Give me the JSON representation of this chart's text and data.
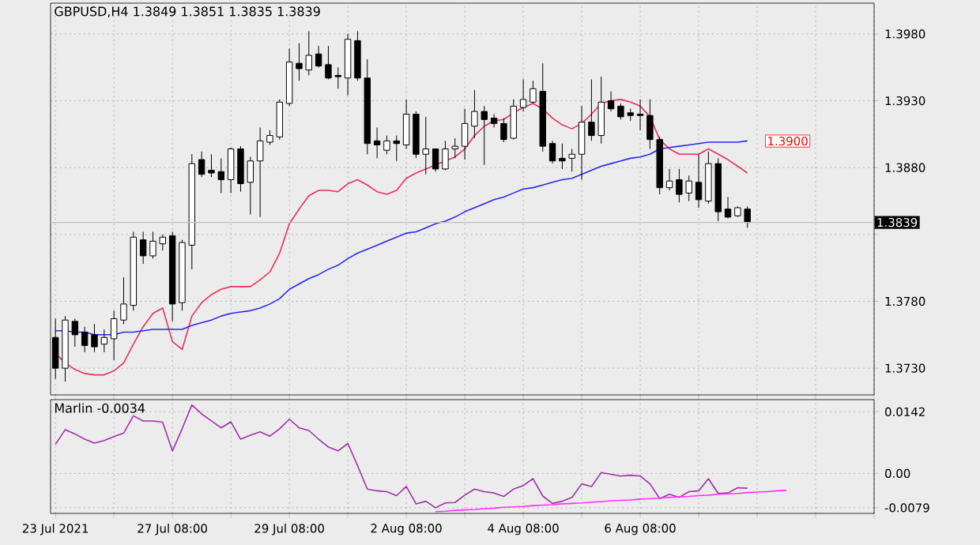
{
  "chart_data": [
    {
      "type": "candlestick",
      "title": "GBPUSD,H4  1.3849 1.3851 1.3835 1.3839",
      "categories": [
        null,
        null,
        null,
        null,
        null,
        null,
        null,
        null,
        null,
        null,
        null,
        null,
        null,
        null,
        null,
        null,
        null,
        null,
        null,
        null,
        null,
        null,
        null,
        null,
        null,
        null,
        null,
        null,
        null,
        null,
        null,
        null,
        null,
        null,
        null,
        null,
        null,
        null,
        null,
        null,
        null,
        null,
        null,
        null,
        null,
        null,
        null,
        null,
        null,
        null,
        null,
        null,
        null,
        null,
        null,
        null,
        null,
        null,
        null,
        null,
        null,
        null,
        null,
        null,
        null,
        null,
        null,
        null,
        null,
        null,
        null,
        null
      ],
      "ohlc": [
        [
          1.3753,
          1.3767,
          1.3722,
          1.373
        ],
        [
          1.373,
          1.3769,
          1.372,
          1.3766
        ],
        [
          1.3765,
          1.3767,
          1.3746,
          1.3755
        ],
        [
          1.3757,
          1.3761,
          1.3742,
          1.3747
        ],
        [
          1.3755,
          1.3763,
          1.3742,
          1.3746
        ],
        [
          1.3748,
          1.3759,
          1.3742,
          1.3753
        ],
        [
          1.3752,
          1.3773,
          1.3736,
          1.3767
        ],
        [
          1.3766,
          1.3798,
          1.3763,
          1.3778
        ],
        [
          1.3777,
          1.3832,
          1.3773,
          1.3828
        ],
        [
          1.3826,
          1.3832,
          1.3808,
          1.3814
        ],
        [
          1.3814,
          1.3832,
          1.3812,
          1.3825
        ],
        [
          1.3823,
          1.383,
          1.3818,
          1.3828
        ],
        [
          1.3829,
          1.3832,
          1.3765,
          1.3778
        ],
        [
          1.3779,
          1.3826,
          1.3773,
          1.3824
        ],
        [
          1.3822,
          1.389,
          1.3804,
          1.3883
        ],
        [
          1.3886,
          1.3892,
          1.3873,
          1.3875
        ],
        [
          1.3878,
          1.389,
          1.3873,
          1.3876
        ],
        [
          1.3877,
          1.3887,
          1.3861,
          1.3871
        ],
        [
          1.3871,
          1.3895,
          1.3861,
          1.3894
        ],
        [
          1.3894,
          1.3896,
          1.3862,
          1.3868
        ],
        [
          1.3869,
          1.3888,
          1.3845,
          1.3885
        ],
        [
          1.3885,
          1.391,
          1.3843,
          1.39
        ],
        [
          1.3899,
          1.3908,
          1.3897,
          1.3904
        ],
        [
          1.3903,
          1.3931,
          1.3901,
          1.3929
        ],
        [
          1.3928,
          1.3969,
          1.3926,
          1.3959
        ],
        [
          1.3958,
          1.3973,
          1.3945,
          1.3954
        ],
        [
          1.3953,
          1.3982,
          1.3949,
          1.3964
        ],
        [
          1.3965,
          1.3971,
          1.3955,
          1.3956
        ],
        [
          1.3957,
          1.3971,
          1.3946,
          1.3947
        ],
        [
          1.3949,
          1.3955,
          1.3939,
          1.3948
        ],
        [
          1.3947,
          1.398,
          1.3934,
          1.3976
        ],
        [
          1.3975,
          1.3982,
          1.3945,
          1.3947
        ],
        [
          1.3947,
          1.3961,
          1.389,
          1.3898
        ],
        [
          1.39,
          1.391,
          1.3887,
          1.3897
        ],
        [
          1.3893,
          1.3904,
          1.389,
          1.39
        ],
        [
          1.39,
          1.3904,
          1.3885,
          1.3898
        ],
        [
          1.3897,
          1.3931,
          1.3894,
          1.392
        ],
        [
          1.392,
          1.3922,
          1.3887,
          1.389
        ],
        [
          1.389,
          1.3918,
          1.3875,
          1.3894
        ],
        [
          1.3894,
          1.3894,
          1.3877,
          1.3879
        ],
        [
          1.3879,
          1.39,
          1.3878,
          1.3894
        ],
        [
          1.3894,
          1.3902,
          1.3887,
          1.3896
        ],
        [
          1.3896,
          1.3924,
          1.3886,
          1.3913
        ],
        [
          1.3911,
          1.3938,
          1.3902,
          1.3922
        ],
        [
          1.3922,
          1.3926,
          1.3882,
          1.3916
        ],
        [
          1.3917,
          1.392,
          1.391,
          1.3913
        ],
        [
          1.3913,
          1.3917,
          1.3899,
          1.3901
        ],
        [
          1.3902,
          1.3931,
          1.3901,
          1.3926
        ],
        [
          1.3925,
          1.3946,
          1.3922,
          1.3931
        ],
        [
          1.3929,
          1.3945,
          1.3928,
          1.3939
        ],
        [
          1.3937,
          1.3958,
          1.3892,
          1.3896
        ],
        [
          1.3898,
          1.39,
          1.3883,
          1.3885
        ],
        [
          1.3887,
          1.3898,
          1.3879,
          1.3885
        ],
        [
          1.3887,
          1.3894,
          1.3877,
          1.389
        ],
        [
          1.389,
          1.3926,
          1.3871,
          1.3914
        ],
        [
          1.3914,
          1.3946,
          1.39,
          1.3904
        ],
        [
          1.3904,
          1.3948,
          1.3898,
          1.3929
        ],
        [
          1.393,
          1.3937,
          1.3922,
          1.3924
        ],
        [
          1.3926,
          1.3928,
          1.3916,
          1.3918
        ],
        [
          1.3921,
          1.3924,
          1.3915,
          1.3919
        ],
        [
          1.392,
          1.3931,
          1.3908,
          1.3919
        ],
        [
          1.3919,
          1.3931,
          1.3894,
          1.3901
        ],
        [
          1.3901,
          1.3903,
          1.386,
          1.3865
        ],
        [
          1.3865,
          1.3879,
          1.3863,
          1.387
        ],
        [
          1.3871,
          1.3879,
          1.3854,
          1.386
        ],
        [
          1.3861,
          1.3874,
          1.3855,
          1.387
        ],
        [
          1.3869,
          1.389,
          1.385,
          1.3856
        ],
        [
          1.3855,
          1.3892,
          1.3853,
          1.3883
        ],
        [
          1.3883,
          1.3887,
          1.384,
          1.3847
        ],
        [
          1.3849,
          1.3858,
          1.3842,
          1.3843
        ],
        [
          1.3844,
          1.3851,
          1.3843,
          1.385
        ],
        [
          1.3849,
          1.3851,
          1.3835,
          1.3839
        ]
      ],
      "series": [
        {
          "type": "line",
          "color": "#e8305a",
          "values": [
            1.3741,
            1.3734,
            1.3729,
            1.3726,
            1.3725,
            1.3725,
            1.3728,
            1.3734,
            1.3748,
            1.3761,
            1.3771,
            1.3775,
            1.375,
            1.3744,
            1.3769,
            1.3779,
            1.3785,
            1.3789,
            1.3791,
            1.3791,
            1.3791,
            1.3796,
            1.3802,
            1.3816,
            1.3838,
            1.3849,
            1.3859,
            1.3863,
            1.3863,
            1.3862,
            1.3868,
            1.3871,
            1.3867,
            1.3862,
            1.386,
            1.3863,
            1.3872,
            1.3876,
            1.3879,
            1.3882,
            1.3885,
            1.3888,
            1.3894,
            1.3904,
            1.3911,
            1.3915,
            1.3916,
            1.3921,
            1.3925,
            1.3928,
            1.3924,
            1.3917,
            1.3912,
            1.3909,
            1.3913,
            1.392,
            1.3928,
            1.393,
            1.3931,
            1.3929,
            1.3926,
            1.3918,
            1.3901,
            1.3894,
            1.389,
            1.389,
            1.389,
            1.3894,
            1.389,
            1.3886,
            1.3881,
            1.3876
          ]
        },
        {
          "type": "line",
          "color": "#2828f0",
          "values": [
            1.3758,
            1.3758,
            1.3757,
            1.3757,
            1.3755,
            1.3755,
            1.3755,
            1.3757,
            1.3757,
            1.3758,
            1.3759,
            1.3759,
            1.3759,
            1.3759,
            1.3762,
            1.3764,
            1.3766,
            1.3769,
            1.3771,
            1.3772,
            1.3773,
            1.3775,
            1.3778,
            1.3782,
            1.3789,
            1.3793,
            1.3797,
            1.38,
            1.3804,
            1.3807,
            1.3812,
            1.3816,
            1.3819,
            1.3822,
            1.3825,
            1.3828,
            1.3831,
            1.3832,
            1.3835,
            1.3838,
            1.384,
            1.3843,
            1.3847,
            1.385,
            1.3853,
            1.3856,
            1.3858,
            1.3861,
            1.3864,
            1.3865,
            1.3867,
            1.3869,
            1.3871,
            1.3872,
            1.3875,
            1.3878,
            1.3881,
            1.3883,
            1.3885,
            1.3887,
            1.3888,
            1.389,
            1.3894,
            1.3895,
            1.3896,
            1.3897,
            1.3898,
            1.3899,
            1.3899,
            1.3899,
            1.3899,
            1.39
          ]
        }
      ],
      "ylim": [
        1.371,
        1.4003
      ],
      "yticks": [
        {
          "value": 1.373,
          "label": "1.3730"
        },
        {
          "value": 1.378,
          "label": "1.3780"
        },
        {
          "value": 1.383,
          "label": null
        },
        {
          "value": 1.388,
          "label": "1.3880"
        },
        {
          "value": 1.393,
          "label": "1.3930"
        },
        {
          "value": 1.398,
          "label": "1.3980"
        }
      ],
      "ref_lines": [
        {
          "axis": "y",
          "value": 1.3839,
          "label": "1.3839",
          "color": "#c0c0c0"
        }
      ],
      "annotations": [
        "1.3900"
      ],
      "grid": true
    },
    {
      "type": "line",
      "title": "Marlin -0.0034",
      "categories": [
        "23 Jul 2021",
        null,
        null,
        null,
        null,
        null,
        null,
        null,
        null,
        null,
        null,
        null,
        "27 Jul 08:00",
        null,
        null,
        null,
        null,
        null,
        null,
        null,
        null,
        null,
        null,
        null,
        "29 Jul 08:00",
        null,
        null,
        null,
        null,
        null,
        null,
        null,
        null,
        null,
        null,
        null,
        "2 Aug 08:00",
        null,
        null,
        null,
        null,
        null,
        null,
        null,
        null,
        null,
        null,
        null,
        "4 Aug 08:00",
        null,
        null,
        null,
        null,
        null,
        null,
        null,
        null,
        null,
        null,
        null,
        "6 Aug 08:00",
        null,
        null,
        null,
        null,
        null,
        null,
        null,
        null,
        null,
        null,
        null,
        null,
        null,
        null,
        null
      ],
      "series": [
        {
          "color": "#a030a8",
          "values": [
            0.0067,
            0.0101,
            0.0091,
            0.0079,
            0.007,
            0.0076,
            0.0085,
            0.0093,
            0.0133,
            0.0121,
            0.0121,
            0.0118,
            0.0052,
            0.0103,
            0.0158,
            0.0137,
            0.0121,
            0.0105,
            0.0119,
            0.0079,
            0.0088,
            0.0096,
            0.0086,
            0.0103,
            0.0125,
            0.0105,
            0.0099,
            0.0079,
            0.0061,
            0.0052,
            0.0069,
            0.0018,
            -0.0036,
            -0.004,
            -0.0042,
            -0.0051,
            -0.003,
            -0.007,
            -0.0064,
            -0.0079,
            -0.0068,
            -0.0067,
            -0.005,
            -0.0036,
            -0.0042,
            -0.0045,
            -0.0053,
            -0.0036,
            -0.0028,
            -0.0012,
            -0.0052,
            -0.0069,
            -0.0064,
            -0.0055,
            -0.0024,
            -0.003,
            0.0002,
            -0.0002,
            -0.0006,
            -0.0004,
            -0.0006,
            -0.0024,
            -0.0058,
            -0.0048,
            -0.0055,
            -0.0042,
            -0.004,
            -0.0012,
            -0.0046,
            -0.0045,
            -0.0033,
            -0.0034,
            null,
            null,
            null,
            null
          ]
        },
        {
          "color": "#ff30ff",
          "values": [
            null,
            null,
            null,
            null,
            null,
            null,
            null,
            null,
            null,
            null,
            null,
            null,
            null,
            null,
            null,
            null,
            null,
            null,
            null,
            null,
            null,
            null,
            null,
            null,
            null,
            null,
            null,
            null,
            null,
            null,
            null,
            null,
            null,
            null,
            null,
            null,
            null,
            null,
            null,
            -0.0088,
            -0.0087,
            -0.0085,
            -0.0084,
            -0.0083,
            -0.0081,
            -0.008,
            -0.0078,
            -0.0077,
            -0.0076,
            -0.0074,
            -0.0073,
            -0.0072,
            -0.007,
            -0.0069,
            -0.0068,
            -0.0066,
            -0.0065,
            -0.0063,
            -0.0062,
            -0.0061,
            -0.0059,
            -0.0058,
            -0.0057,
            -0.0055,
            -0.0054,
            -0.0053,
            -0.0051,
            -0.005,
            -0.0048,
            -0.0047,
            -0.0046,
            -0.0044,
            -0.0043,
            -0.0042,
            -0.004,
            -0.0039
          ]
        }
      ],
      "ylim": [
        -0.0092,
        0.017
      ],
      "yticks": [
        -0.0079,
        {
          "value": 0,
          "label": "0.00"
        },
        0.0142
      ],
      "grid": true
    }
  ]
}
